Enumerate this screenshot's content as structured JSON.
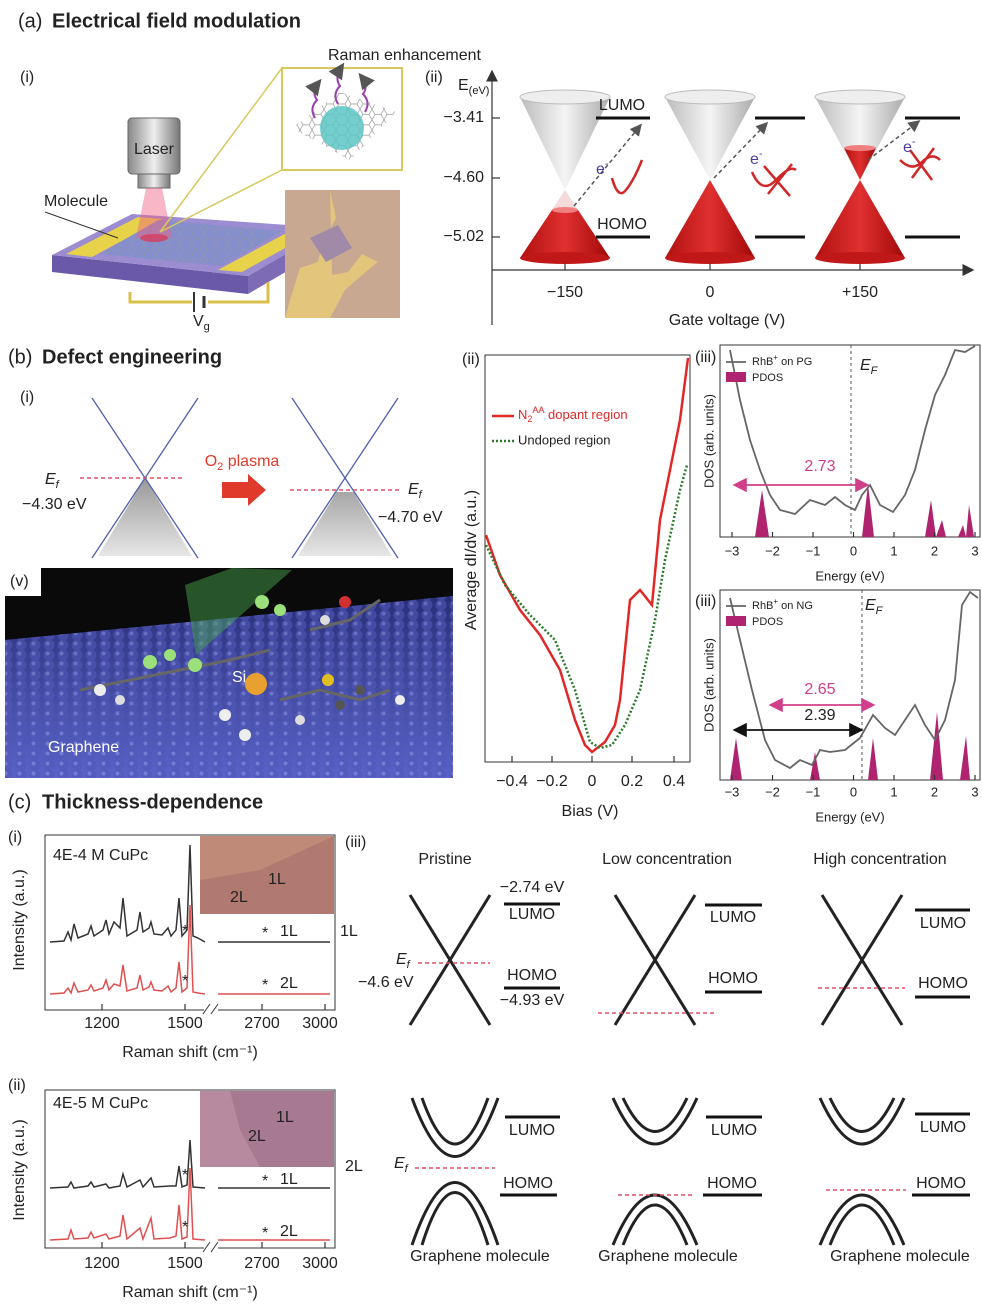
{
  "a": {
    "label": "(a)",
    "title": "Electrical field modulation",
    "i": {
      "label": "(i)",
      "raman": "Raman enhancement",
      "laser": "Laser",
      "molecule": "Molecule",
      "vg": "V",
      "vg_sub": "g"
    },
    "ii": {
      "label": "(ii)",
      "axis_e": "E",
      "axis_e_sub": "(eV)",
      "yticks": [
        "−3.41",
        "−4.60",
        "−5.02"
      ],
      "xticks": [
        "−150",
        "0",
        "+150"
      ],
      "x_label": "Gate voltage (V)",
      "lumo": "LUMO",
      "homo": "HOMO",
      "electron": "e",
      "electron_sup": "-"
    }
  },
  "b": {
    "label": "(b)",
    "title": "Defect engineering",
    "i": {
      "label": "(i)",
      "ef": "E",
      "ef_sub": "f",
      "left_energy": "−4.30 eV",
      "right_energy": "−4.70 eV",
      "plasma": "O",
      "plasma_sub": "2",
      "plasma_rest": " plasma"
    },
    "v": {
      "label": "(v)",
      "si": "Si",
      "graphene": "Graphene"
    },
    "ii": {
      "label": "(ii)",
      "y_label": "Average dI/dv (a.u.)",
      "legend_doped": "N",
      "legend_doped_sub": "2",
      "legend_doped_sup": "AA",
      "legend_doped_rest": " dopant region",
      "legend_undoped": "Undoped region",
      "xticks": [
        "−0.4",
        "−0.2",
        "0",
        "0.2",
        "0.4"
      ],
      "x_label": "Bias (V)"
    },
    "iii_pg": {
      "label": "(iii)",
      "legend_line": "RhB",
      "legend_line_sup": "+",
      "legend_line_rest": " on PG",
      "legend_pdos": "PDOS",
      "ef": "E",
      "ef_sub": "F",
      "gap": "2.73",
      "y_label": "DOS (arb. units)",
      "xticks": [
        "−3",
        "−2",
        "−1",
        "0",
        "1",
        "2",
        "3"
      ],
      "x_label": "Energy (eV)"
    },
    "iii_ng": {
      "label": "(iii)",
      "legend_line": "RhB",
      "legend_line_sup": "+",
      "legend_line_rest": " on NG",
      "legend_pdos": "PDOS",
      "ef": "E",
      "ef_sub": "F",
      "gap": "2.65",
      "gap2": "2.39",
      "y_label": "DOS (arb. units)",
      "xticks": [
        "−3",
        "−2",
        "−1",
        "0",
        "1",
        "2",
        "3"
      ],
      "x_label": "Energy (eV)"
    }
  },
  "c": {
    "label": "(c)",
    "title": "Thickness-dependence",
    "i": {
      "label": "(i)",
      "sample": "4E-4 M CuPc",
      "inset_2l": "2L",
      "inset_1l": "1L",
      "trace_1l": "1L",
      "trace_2l": "2L",
      "star": "*",
      "y_label": "Intensity (a.u.)",
      "xticks": [
        "1200",
        "1500",
        "2700",
        "3000"
      ],
      "x_label": "Raman shift (cm⁻¹)"
    },
    "ii": {
      "label": "(ii)",
      "sample": "4E-5 M CuPc",
      "inset_2l": "2L",
      "inset_1l": "1L",
      "trace_1l": "1L",
      "trace_2l": "2L",
      "star": "*",
      "y_label": "Intensity (a.u.)",
      "xticks": [
        "1200",
        "1500",
        "2700",
        "3000"
      ],
      "x_label": "Raman shift (cm⁻¹)"
    },
    "iii": {
      "label": "(iii)",
      "columns": [
        "Pristine",
        "Low concentration",
        "High concentration"
      ],
      "rows": [
        "1L",
        "2L"
      ],
      "lumo_energy": "−2.74 eV",
      "homo_energy": "−4.93 eV",
      "lumo": "LUMO",
      "homo": "HOMO",
      "ef": "E",
      "ef_sub": "f",
      "ef_energy": "−4.6 eV",
      "bottom_labels": [
        "Graphene molecule",
        "Graphene molecule",
        "Graphene molecule"
      ]
    }
  }
}
